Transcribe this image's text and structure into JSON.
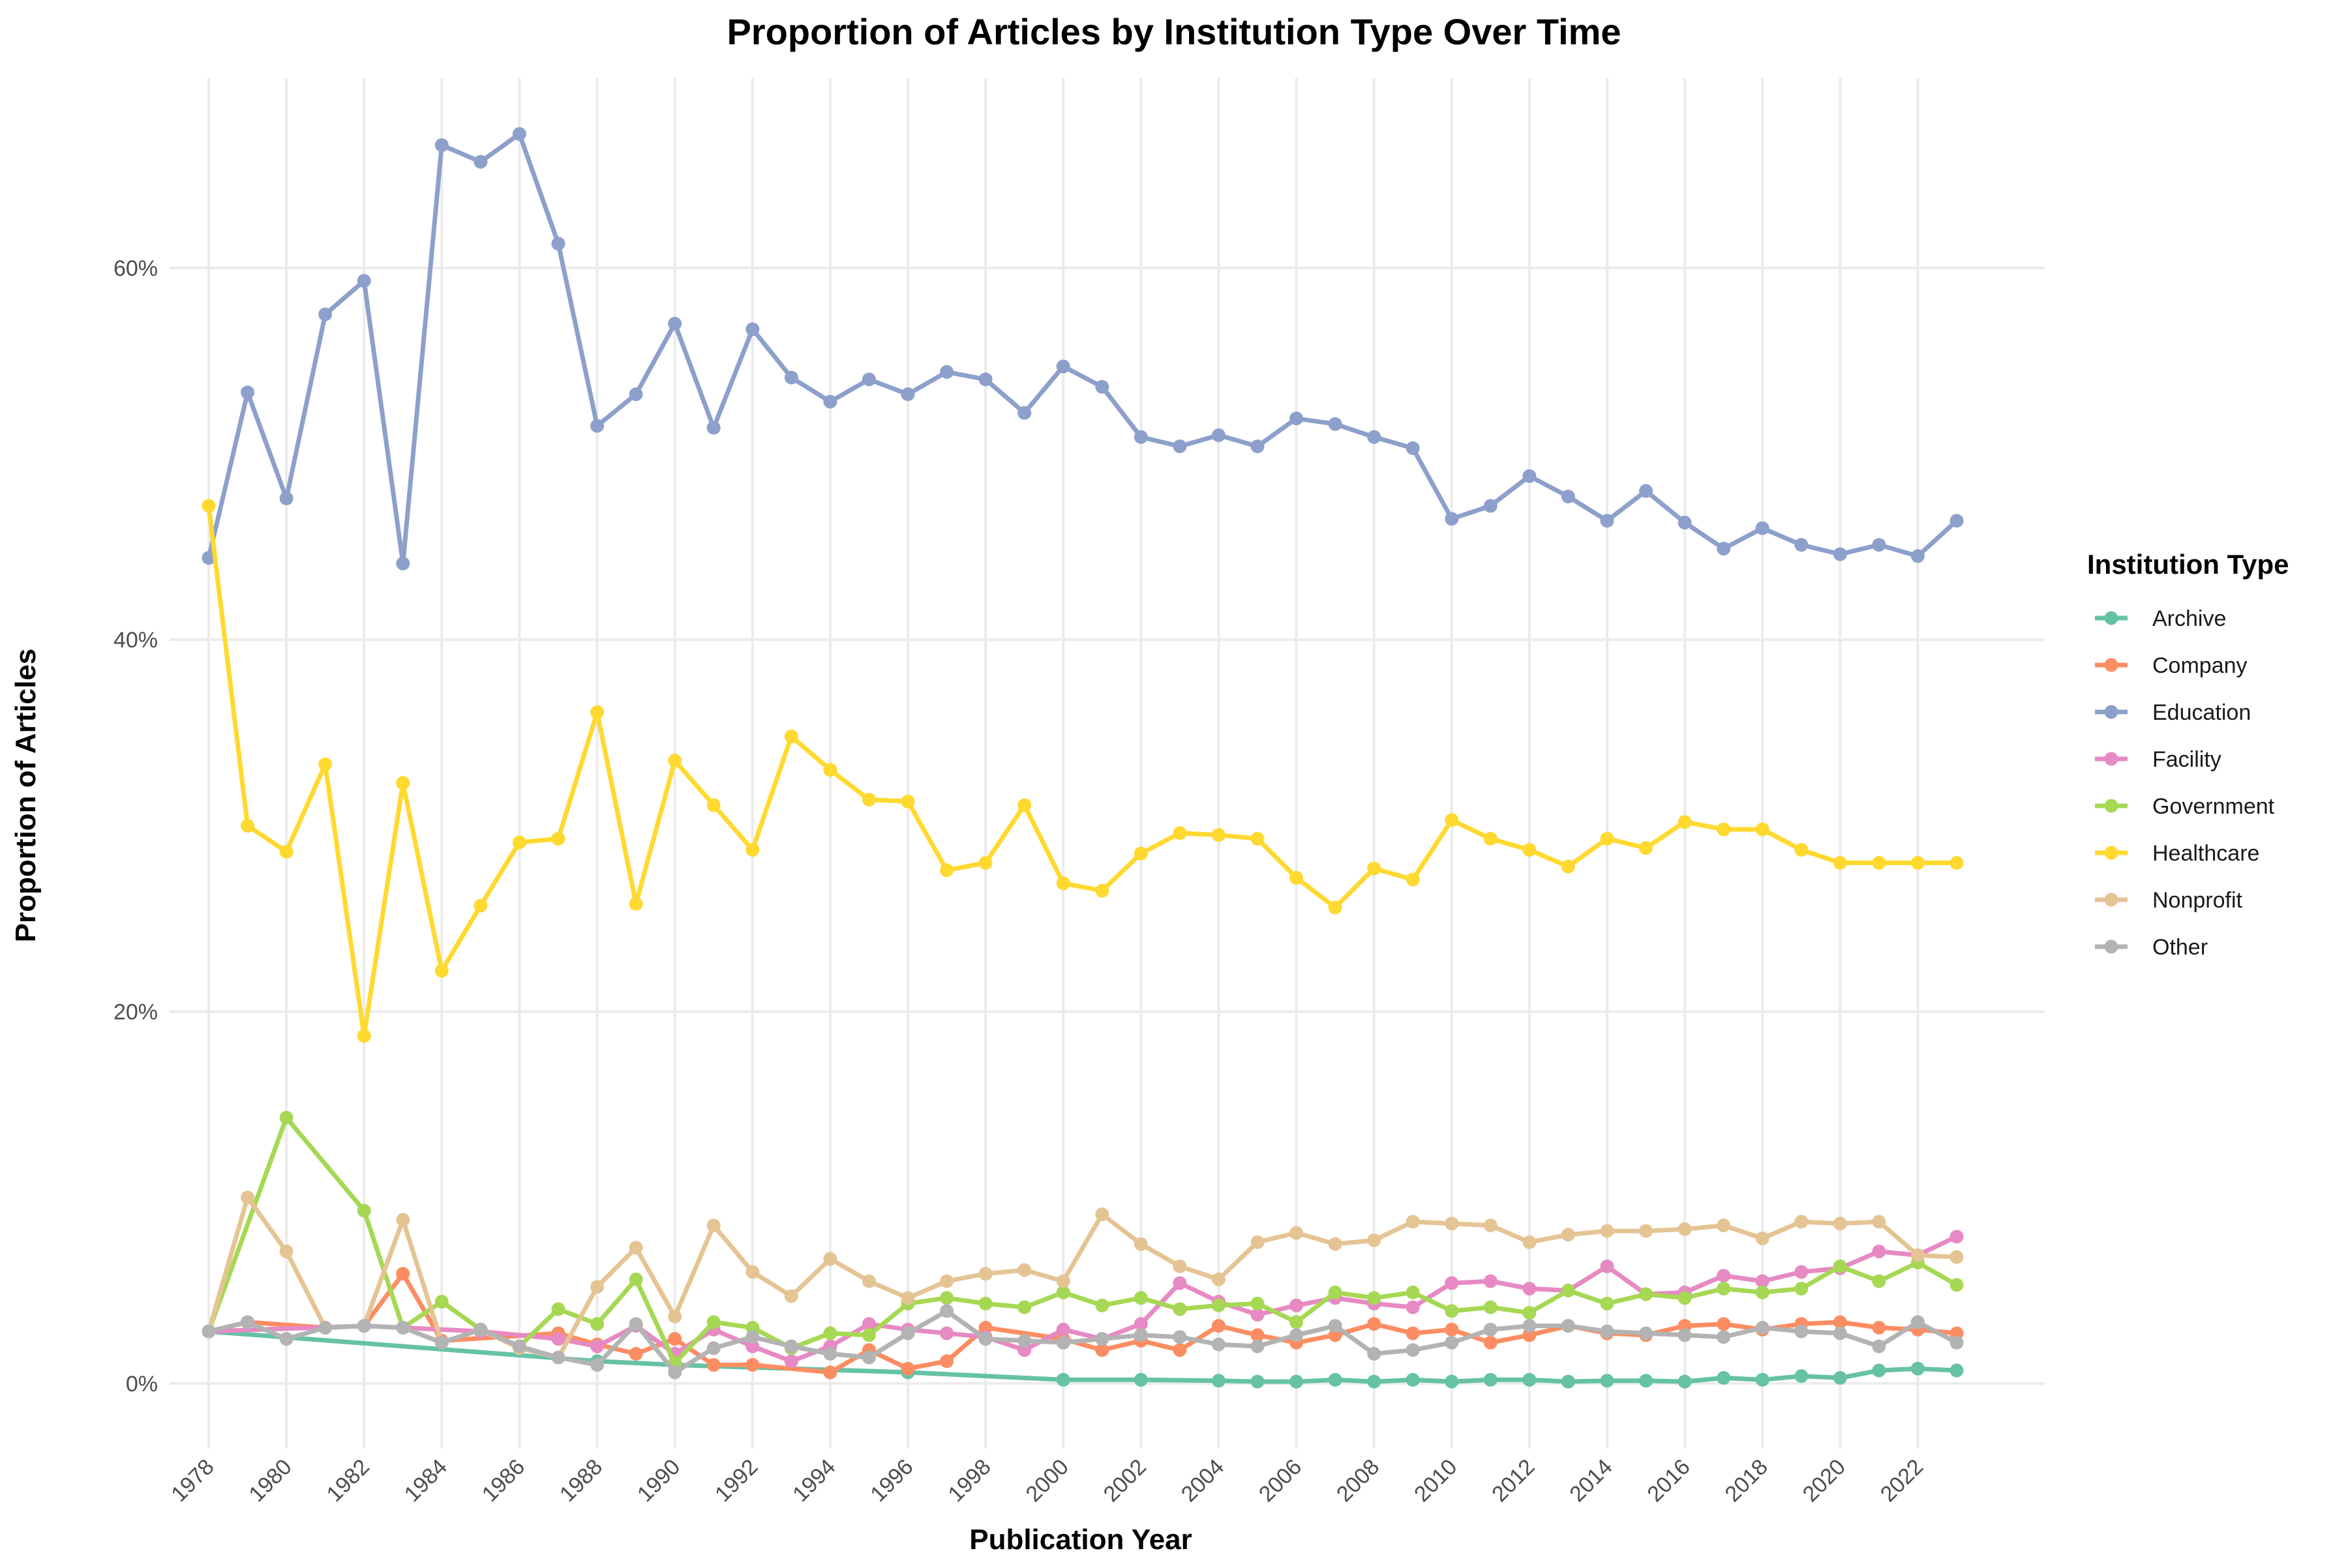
{
  "chart_data": {
    "type": "line",
    "title": "Proportion of Articles by Institution Type Over Time",
    "xlabel": "Publication Year",
    "ylabel": "Proportion of Articles",
    "xlim": [
      1977,
      2024
    ],
    "ylim": [
      -0.035,
      0.72
    ],
    "x_ticks": [
      1978,
      1980,
      1982,
      1984,
      1986,
      1988,
      1990,
      1992,
      1994,
      1996,
      1998,
      2000,
      2002,
      2004,
      2006,
      2008,
      2010,
      2012,
      2014,
      2016,
      2018,
      2020,
      2022
    ],
    "y_ticks": [
      0,
      0.2,
      0.4,
      0.6
    ],
    "y_tick_labels": [
      "0%",
      "20%",
      "40%",
      "60%"
    ],
    "grid": true,
    "legend_title": "Institution Type",
    "legend_position": "right",
    "series": [
      {
        "name": "Archive",
        "color": "#66C2A5",
        "x": [
          1978,
          1988,
          1990,
          1996,
          2000,
          2002,
          2004,
          2005,
          2006,
          2007,
          2008,
          2009,
          2010,
          2011,
          2012,
          2013,
          2014,
          2015,
          2016,
          2017,
          2018,
          2019,
          2020,
          2021,
          2022,
          2023
        ],
        "y": [
          0.028,
          0.012,
          0.01,
          0.006,
          0.002,
          0.002,
          0.0015,
          0.001,
          0.001,
          0.002,
          0.001,
          0.002,
          0.001,
          0.002,
          0.002,
          0.001,
          0.0015,
          0.0015,
          0.001,
          0.003,
          0.002,
          0.004,
          0.003,
          0.007,
          0.008,
          0.007
        ]
      },
      {
        "name": "Company",
        "color": "#FC8D62",
        "x": [
          1978,
          1979,
          1981,
          1982,
          1983,
          1984,
          1987,
          1988,
          1989,
          1990,
          1991,
          1992,
          1994,
          1995,
          1996,
          1997,
          1998,
          2000,
          2001,
          2002,
          2003,
          2004,
          2005,
          2006,
          2007,
          2008,
          2009,
          2010,
          2011,
          2012,
          2013,
          2014,
          2015,
          2016,
          2017,
          2018,
          2019,
          2020,
          2021,
          2022,
          2023
        ],
        "y": [
          0.028,
          0.033,
          0.03,
          0.031,
          0.059,
          0.023,
          0.027,
          0.021,
          0.016,
          0.024,
          0.01,
          0.01,
          0.006,
          0.018,
          0.008,
          0.012,
          0.03,
          0.024,
          0.018,
          0.023,
          0.018,
          0.031,
          0.026,
          0.022,
          0.026,
          0.032,
          0.027,
          0.029,
          0.022,
          0.026,
          0.031,
          0.027,
          0.026,
          0.031,
          0.032,
          0.029,
          0.032,
          0.033,
          0.03,
          0.029,
          0.027
        ]
      },
      {
        "name": "Education",
        "color": "#8DA0CB",
        "x": [
          1978,
          1979,
          1980,
          1981,
          1982,
          1983,
          1984,
          1985,
          1986,
          1987,
          1988,
          1989,
          1990,
          1991,
          1992,
          1993,
          1994,
          1995,
          1996,
          1997,
          1998,
          1999,
          2000,
          2001,
          2002,
          2003,
          2004,
          2005,
          2006,
          2007,
          2008,
          2009,
          2010,
          2011,
          2012,
          2013,
          2014,
          2015,
          2016,
          2017,
          2018,
          2019,
          2020,
          2021,
          2022,
          2023
        ],
        "y": [
          0.444,
          0.533,
          0.476,
          0.575,
          0.593,
          0.441,
          0.666,
          0.657,
          0.672,
          0.613,
          0.515,
          0.532,
          0.57,
          0.514,
          0.567,
          0.541,
          0.528,
          0.54,
          0.532,
          0.544,
          0.54,
          0.522,
          0.547,
          0.536,
          0.509,
          0.504,
          0.51,
          0.504,
          0.519,
          0.516,
          0.509,
          0.503,
          0.465,
          0.472,
          0.488,
          0.477,
          0.464,
          0.48,
          0.463,
          0.449,
          0.46,
          0.451,
          0.446,
          0.451,
          0.445,
          0.464
        ]
      },
      {
        "name": "Facility",
        "color": "#E78AC3",
        "x": [
          1978,
          1982,
          1985,
          1987,
          1988,
          1989,
          1990,
          1991,
          1992,
          1993,
          1994,
          1995,
          1996,
          1997,
          1998,
          1999,
          2000,
          2001,
          2002,
          2003,
          2004,
          2005,
          2006,
          2007,
          2008,
          2009,
          2010,
          2011,
          2012,
          2013,
          2014,
          2015,
          2016,
          2017,
          2018,
          2019,
          2020,
          2021,
          2022,
          2023
        ],
        "y": [
          0.028,
          0.031,
          0.028,
          0.024,
          0.02,
          0.031,
          0.016,
          0.029,
          0.02,
          0.012,
          0.02,
          0.032,
          0.029,
          0.027,
          0.025,
          0.018,
          0.029,
          0.024,
          0.032,
          0.054,
          0.044,
          0.037,
          0.042,
          0.046,
          0.043,
          0.041,
          0.054,
          0.055,
          0.051,
          0.05,
          0.063,
          0.048,
          0.049,
          0.058,
          0.055,
          0.06,
          0.062,
          0.071,
          0.069,
          0.079
        ]
      },
      {
        "name": "Government",
        "color": "#A6D854",
        "x": [
          1978,
          1980,
          1982,
          1983,
          1984,
          1985,
          1986,
          1987,
          1988,
          1989,
          1990,
          1991,
          1992,
          1993,
          1994,
          1995,
          1996,
          1997,
          1998,
          1999,
          2000,
          2001,
          2002,
          2003,
          2004,
          2005,
          2006,
          2007,
          2008,
          2009,
          2010,
          2011,
          2012,
          2013,
          2014,
          2015,
          2016,
          2017,
          2018,
          2019,
          2020,
          2021,
          2022,
          2023
        ],
        "y": [
          0.028,
          0.143,
          0.093,
          0.03,
          0.044,
          0.029,
          0.02,
          0.04,
          0.032,
          0.056,
          0.011,
          0.033,
          0.03,
          0.019,
          0.027,
          0.026,
          0.043,
          0.046,
          0.043,
          0.041,
          0.049,
          0.042,
          0.046,
          0.04,
          0.042,
          0.043,
          0.033,
          0.049,
          0.046,
          0.049,
          0.039,
          0.041,
          0.038,
          0.05,
          0.043,
          0.048,
          0.046,
          0.051,
          0.049,
          0.051,
          0.063,
          0.055,
          0.065,
          0.053
        ]
      },
      {
        "name": "Healthcare",
        "color": "#FFD92F",
        "x": [
          1978,
          1979,
          1980,
          1981,
          1982,
          1983,
          1984,
          1985,
          1986,
          1987,
          1988,
          1989,
          1990,
          1991,
          1992,
          1993,
          1994,
          1995,
          1996,
          1997,
          1998,
          1999,
          2000,
          2001,
          2002,
          2003,
          2004,
          2005,
          2006,
          2007,
          2008,
          2009,
          2010,
          2011,
          2012,
          2013,
          2014,
          2015,
          2016,
          2017,
          2018,
          2019,
          2020,
          2021,
          2022,
          2023
        ],
        "y": [
          0.472,
          0.3,
          0.286,
          0.333,
          0.187,
          0.323,
          0.222,
          0.257,
          0.291,
          0.293,
          0.361,
          0.258,
          0.335,
          0.311,
          0.287,
          0.348,
          0.33,
          0.314,
          0.313,
          0.276,
          0.28,
          0.311,
          0.269,
          0.265,
          0.285,
          0.296,
          0.295,
          0.293,
          0.272,
          0.256,
          0.277,
          0.271,
          0.303,
          0.293,
          0.287,
          0.278,
          0.293,
          0.288,
          0.302,
          0.298,
          0.298,
          0.287,
          0.28,
          0.28,
          0.28,
          0.28
        ]
      },
      {
        "name": "Nonprofit",
        "color": "#E5C494",
        "x": [
          1978,
          1979,
          1980,
          1981,
          1982,
          1983,
          1984,
          1985,
          1986,
          1987,
          1988,
          1989,
          1990,
          1991,
          1992,
          1993,
          1994,
          1995,
          1996,
          1997,
          1998,
          1999,
          2000,
          2001,
          2002,
          2003,
          2004,
          2005,
          2006,
          2007,
          2008,
          2009,
          2010,
          2011,
          2012,
          2013,
          2014,
          2015,
          2016,
          2017,
          2018,
          2019,
          2020,
          2021,
          2022,
          2023
        ],
        "y": [
          0.028,
          0.1,
          0.071,
          0.03,
          0.031,
          0.088,
          0.022,
          0.029,
          0.019,
          0.014,
          0.052,
          0.073,
          0.036,
          0.085,
          0.06,
          0.047,
          0.067,
          0.055,
          0.046,
          0.055,
          0.059,
          0.061,
          0.055,
          0.091,
          0.075,
          0.063,
          0.056,
          0.076,
          0.081,
          0.075,
          0.077,
          0.087,
          0.086,
          0.085,
          0.076,
          0.08,
          0.082,
          0.082,
          0.083,
          0.085,
          0.078,
          0.087,
          0.086,
          0.087,
          0.069,
          0.068
        ]
      },
      {
        "name": "Other",
        "color": "#B3B3B3",
        "x": [
          1978,
          1979,
          1980,
          1981,
          1982,
          1983,
          1984,
          1985,
          1986,
          1987,
          1988,
          1989,
          1990,
          1991,
          1992,
          1993,
          1994,
          1995,
          1996,
          1997,
          1998,
          1999,
          2000,
          2001,
          2002,
          2003,
          2004,
          2005,
          2006,
          2007,
          2008,
          2009,
          2010,
          2011,
          2012,
          2013,
          2014,
          2015,
          2016,
          2017,
          2018,
          2019,
          2020,
          2021,
          2022,
          2023
        ],
        "y": [
          0.028,
          0.033,
          0.024,
          0.03,
          0.031,
          0.03,
          0.022,
          0.029,
          0.02,
          0.014,
          0.01,
          0.032,
          0.006,
          0.019,
          0.025,
          0.02,
          0.016,
          0.014,
          0.027,
          0.039,
          0.024,
          0.023,
          0.022,
          0.024,
          0.026,
          0.025,
          0.021,
          0.02,
          0.026,
          0.031,
          0.016,
          0.018,
          0.022,
          0.029,
          0.031,
          0.031,
          0.028,
          0.027,
          0.026,
          0.025,
          0.03,
          0.028,
          0.027,
          0.02,
          0.033,
          0.022
        ]
      }
    ]
  }
}
